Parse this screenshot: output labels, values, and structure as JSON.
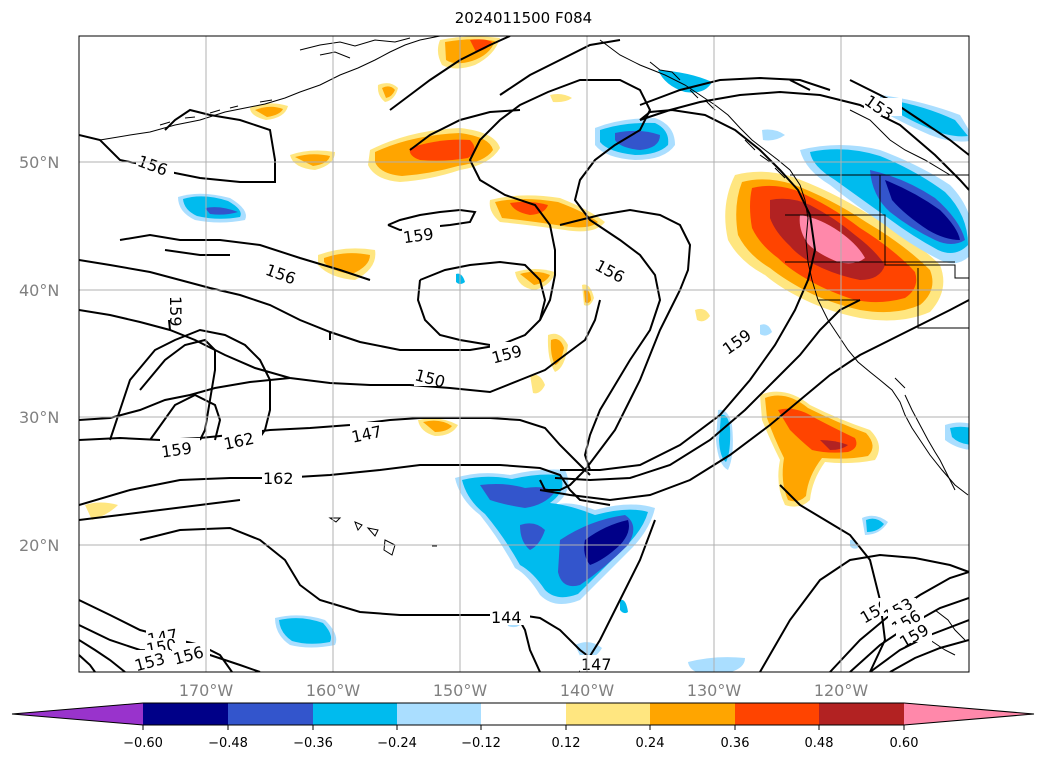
{
  "title": "2024011500 F084",
  "map": {
    "lat_labels": [
      "50°N",
      "40°N",
      "30°N",
      "20°N"
    ],
    "lon_labels": [
      "170°W",
      "160°W",
      "150°W",
      "140°W",
      "130°W",
      "120°W"
    ],
    "contour_labels": [
      "156",
      "159",
      "156",
      "159",
      "156",
      "159",
      "159",
      "153",
      "150",
      "147",
      "162",
      "159",
      "162",
      "144",
      "147",
      "147",
      "150",
      "153",
      "156",
      "150",
      "153",
      "156",
      "159"
    ]
  },
  "colorbar": {
    "labels": [
      "−0.60",
      "−0.48",
      "−0.36",
      "−0.24",
      "−0.12",
      "0.12",
      "0.24",
      "0.36",
      "0.48",
      "0.60"
    ],
    "colors": {
      "min_extend": "#9933cc",
      "n060": "#000088",
      "n048": "#3355cc",
      "n036": "#00bbee",
      "n024": "#aadeff",
      "zero": "#ffffff",
      "p012": "#ffe680",
      "p024": "#ffa500",
      "p036": "#ff4400",
      "p048": "#b22222",
      "max_extend": "#ff88aa"
    }
  }
}
